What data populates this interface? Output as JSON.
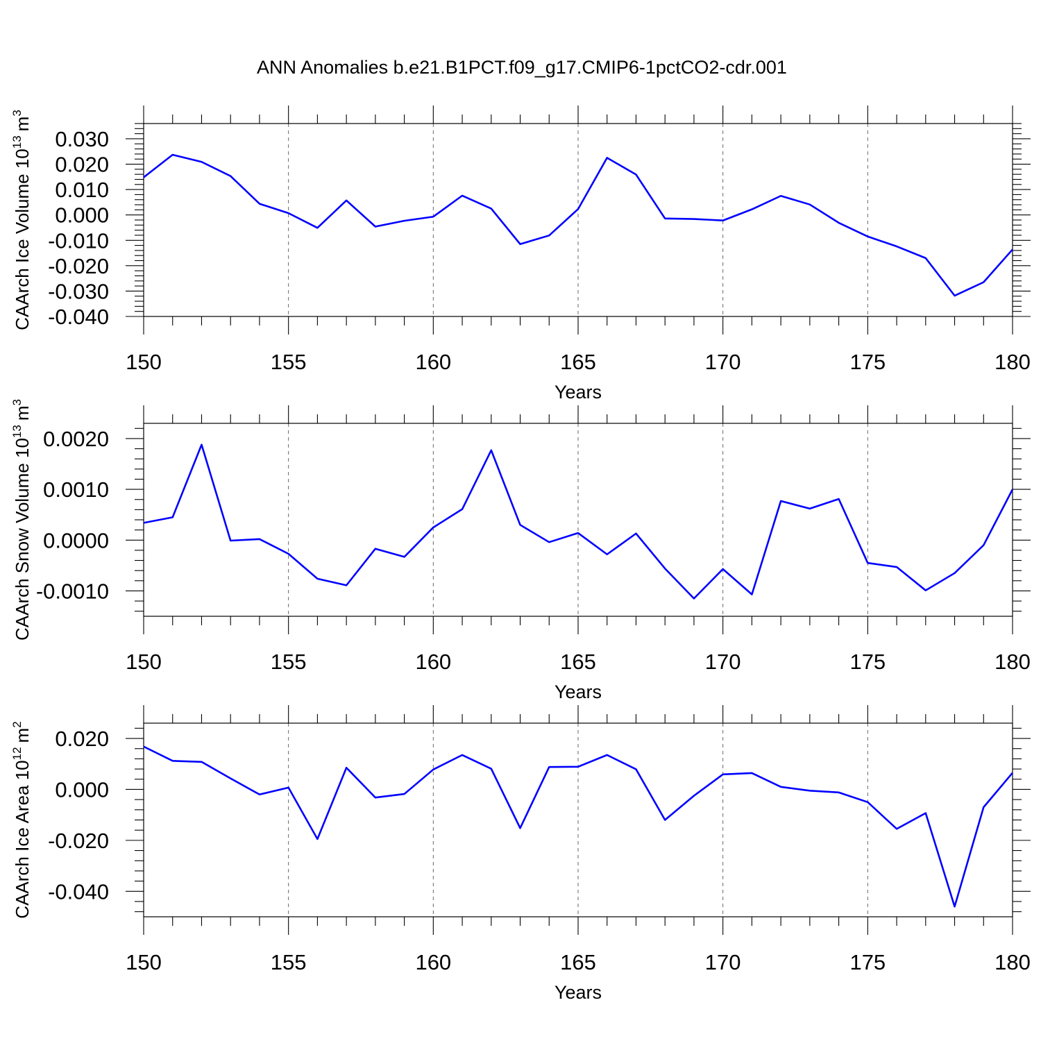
{
  "figure": {
    "title": "ANN Anomalies b.e21.B1PCT.f09_g17.CMIP6-1pctCO2-cdr.001",
    "line_color": "#0000ff"
  },
  "chart_data": [
    {
      "type": "line",
      "id": "ice-volume",
      "ylabel": "CAArch Ice Volume 10",
      "ylabel_sup": "13",
      "ylabel_unit": "m",
      "ylabel_unit_sup": "3",
      "xlabel": "Years",
      "xlim": [
        150,
        180
      ],
      "ylim": [
        -0.04,
        0.036
      ],
      "x_ticks": [
        150,
        155,
        160,
        165,
        170,
        175,
        180
      ],
      "y_ticks": [
        -0.04,
        -0.03,
        -0.02,
        -0.01,
        0.0,
        0.01,
        0.02,
        0.03
      ],
      "y_tick_labels": [
        "-0.040",
        "-0.030",
        "-0.020",
        "-0.010",
        "0.000",
        "0.010",
        "0.020",
        "0.030"
      ],
      "y_minor_step": 0.002,
      "x": [
        150,
        151,
        152,
        153,
        154,
        155,
        156,
        157,
        158,
        159,
        160,
        161,
        162,
        163,
        164,
        165,
        166,
        167,
        168,
        169,
        170,
        171,
        172,
        173,
        174,
        175,
        176,
        177,
        178,
        179,
        180
      ],
      "values": [
        0.0148,
        0.0237,
        0.0209,
        0.0153,
        0.0044,
        0.0007,
        -0.0051,
        0.0057,
        -0.0046,
        -0.0023,
        -0.0007,
        0.0076,
        0.0025,
        -0.0115,
        -0.0081,
        0.0023,
        0.0225,
        0.0159,
        -0.0014,
        -0.0016,
        -0.0022,
        0.0022,
        0.0075,
        0.0041,
        -0.0031,
        -0.0085,
        -0.0124,
        -0.017,
        -0.0318,
        -0.0265,
        -0.0136
      ]
    },
    {
      "type": "line",
      "id": "snow-volume",
      "ylabel": "CAArch Snow Volume 10",
      "ylabel_sup": "13",
      "ylabel_unit": "m",
      "ylabel_unit_sup": "3",
      "xlabel": "Years",
      "xlim": [
        150,
        180
      ],
      "ylim": [
        -0.0015,
        0.0023
      ],
      "x_ticks": [
        150,
        155,
        160,
        165,
        170,
        175,
        180
      ],
      "y_ticks": [
        -0.001,
        0.0,
        0.001,
        0.002
      ],
      "y_tick_labels": [
        "-0.0010",
        "0.0000",
        "0.0010",
        "0.0020"
      ],
      "y_minor_step": 0.0002,
      "x": [
        150,
        151,
        152,
        153,
        154,
        155,
        156,
        157,
        158,
        159,
        160,
        161,
        162,
        163,
        164,
        165,
        166,
        167,
        168,
        169,
        170,
        171,
        172,
        173,
        174,
        175,
        176,
        177,
        178,
        179,
        180
      ],
      "values": [
        0.00034,
        0.00045,
        0.00188,
        -1e-05,
        2e-05,
        -0.00027,
        -0.00076,
        -0.00089,
        -0.00017,
        -0.00033,
        0.00025,
        0.00061,
        0.00177,
        0.0003,
        -4e-05,
        0.00014,
        -0.00028,
        0.00013,
        -0.00056,
        -0.00115,
        -0.00057,
        -0.00107,
        0.00077,
        0.00062,
        0.00081,
        -0.00045,
        -0.00053,
        -0.00099,
        -0.00065,
        -0.0001,
        0.001
      ]
    },
    {
      "type": "line",
      "id": "ice-area",
      "ylabel": "CAArch Ice Area 10",
      "ylabel_sup": "12",
      "ylabel_unit": "m",
      "ylabel_unit_sup": "2",
      "xlabel": "Years",
      "xlim": [
        150,
        180
      ],
      "ylim": [
        -0.05,
        0.026
      ],
      "x_ticks": [
        150,
        155,
        160,
        165,
        170,
        175,
        180
      ],
      "y_ticks": [
        -0.04,
        -0.02,
        0.0,
        0.02
      ],
      "y_tick_labels": [
        "-0.040",
        "-0.020",
        "0.000",
        "0.020"
      ],
      "y_minor_step": 0.004,
      "x": [
        150,
        151,
        152,
        153,
        154,
        155,
        156,
        157,
        158,
        159,
        160,
        161,
        162,
        163,
        164,
        165,
        166,
        167,
        168,
        169,
        170,
        171,
        172,
        173,
        174,
        175,
        176,
        177,
        178,
        179,
        180
      ],
      "values": [
        0.0168,
        0.0112,
        0.0108,
        0.0043,
        -0.002,
        0.0007,
        -0.0195,
        0.0085,
        -0.0032,
        -0.0018,
        0.0078,
        0.0135,
        0.0081,
        -0.0152,
        0.0088,
        0.0089,
        0.0135,
        0.0079,
        -0.012,
        -0.0025,
        0.0059,
        0.0064,
        0.001,
        -0.0005,
        -0.0012,
        -0.005,
        -0.0155,
        -0.0093,
        -0.046,
        -0.007,
        0.0065
      ]
    }
  ]
}
